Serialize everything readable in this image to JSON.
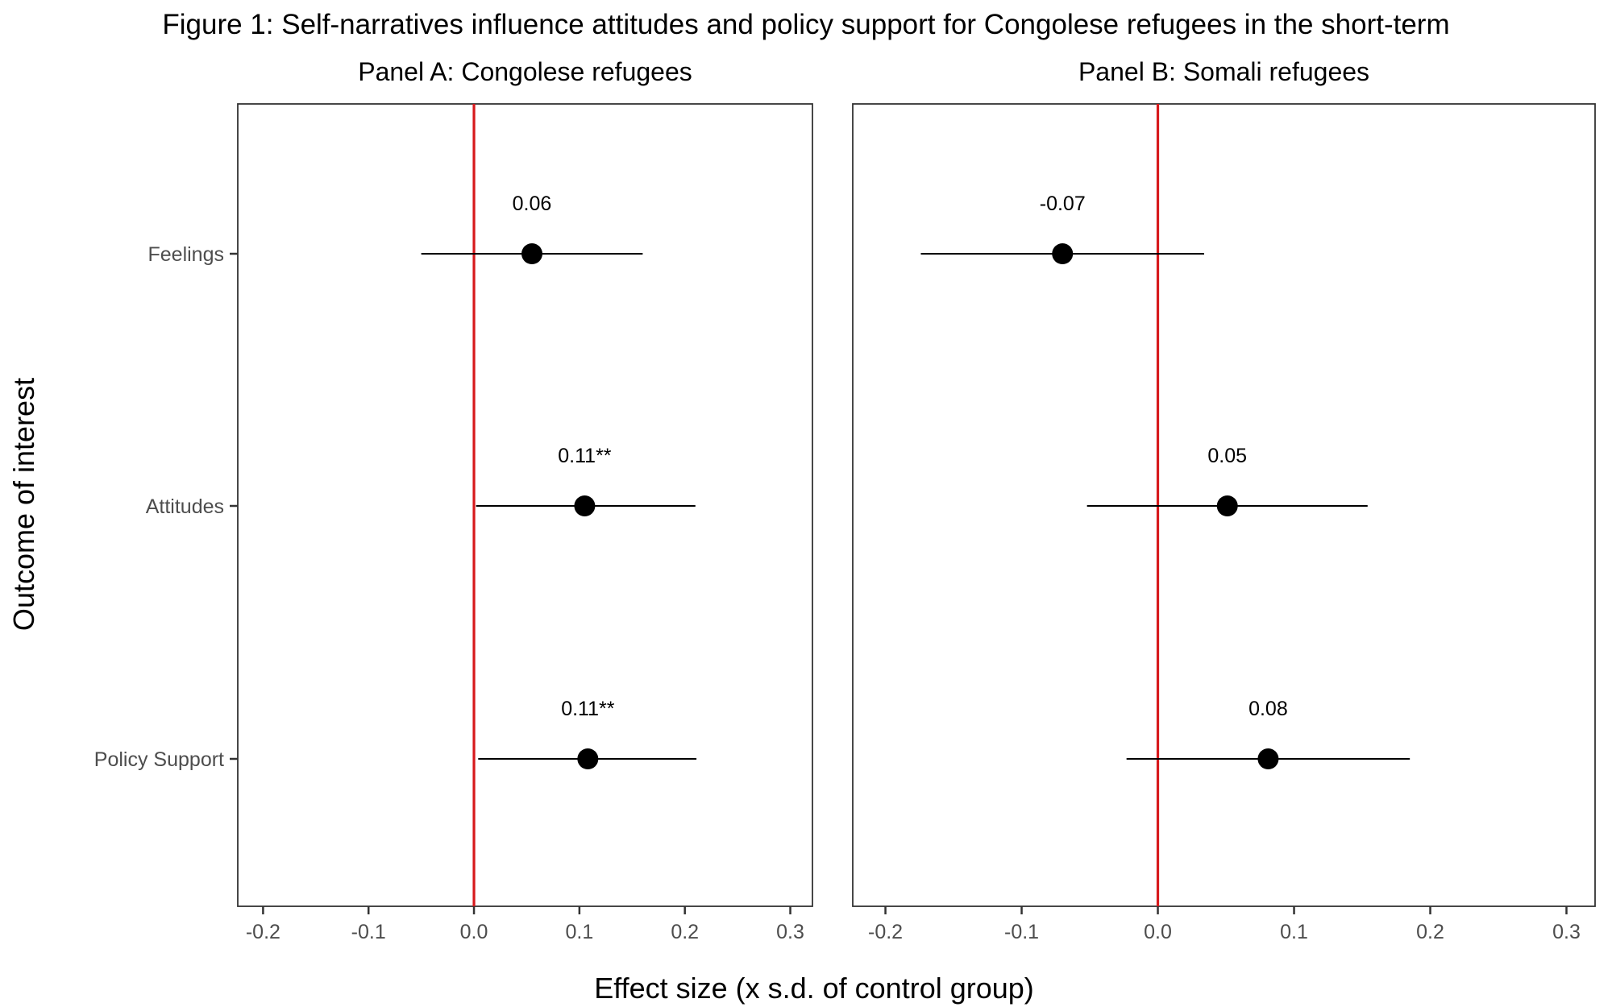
{
  "chart_data": {
    "type": "scatter",
    "subtype": "coefficient-plot-with-confidence-intervals",
    "title": "Figure 1: Self-narratives influence attitudes and policy support for Congolese refugees in the short-term",
    "xlabel": "Effect size (x s.d. of control group)",
    "ylabel": "Outcome of interest",
    "xlim": [
      -0.224,
      0.321
    ],
    "xticks": [
      -0.2,
      -0.1,
      0.0,
      0.1,
      0.2,
      0.3
    ],
    "xtick_labels": [
      "-0.2",
      "-0.1",
      "0.0",
      "0.1",
      "0.2",
      "0.3"
    ],
    "categories": [
      "Feelings",
      "Attitudes",
      "Policy Support"
    ],
    "reference_line": {
      "x": 0.0,
      "color": "#d7191c"
    },
    "grid": false,
    "legend": "none",
    "panels": [
      {
        "title": "Panel A: Congolese refugees",
        "points": [
          {
            "category": "Feelings",
            "estimate": 0.055,
            "ci_low": -0.05,
            "ci_high": 0.16,
            "label": "0.06"
          },
          {
            "category": "Attitudes",
            "estimate": 0.105,
            "ci_low": 0.002,
            "ci_high": 0.21,
            "label": "0.11**"
          },
          {
            "category": "Policy Support",
            "estimate": 0.108,
            "ci_low": 0.004,
            "ci_high": 0.211,
            "label": "0.11**"
          }
        ]
      },
      {
        "title": "Panel B: Somali refugees",
        "points": [
          {
            "category": "Feelings",
            "estimate": -0.07,
            "ci_low": -0.174,
            "ci_high": 0.034,
            "label": "-0.07"
          },
          {
            "category": "Attitudes",
            "estimate": 0.051,
            "ci_low": -0.052,
            "ci_high": 0.154,
            "label": "0.05"
          },
          {
            "category": "Policy Support",
            "estimate": 0.081,
            "ci_low": -0.023,
            "ci_high": 0.185,
            "label": "0.08"
          }
        ]
      }
    ]
  }
}
